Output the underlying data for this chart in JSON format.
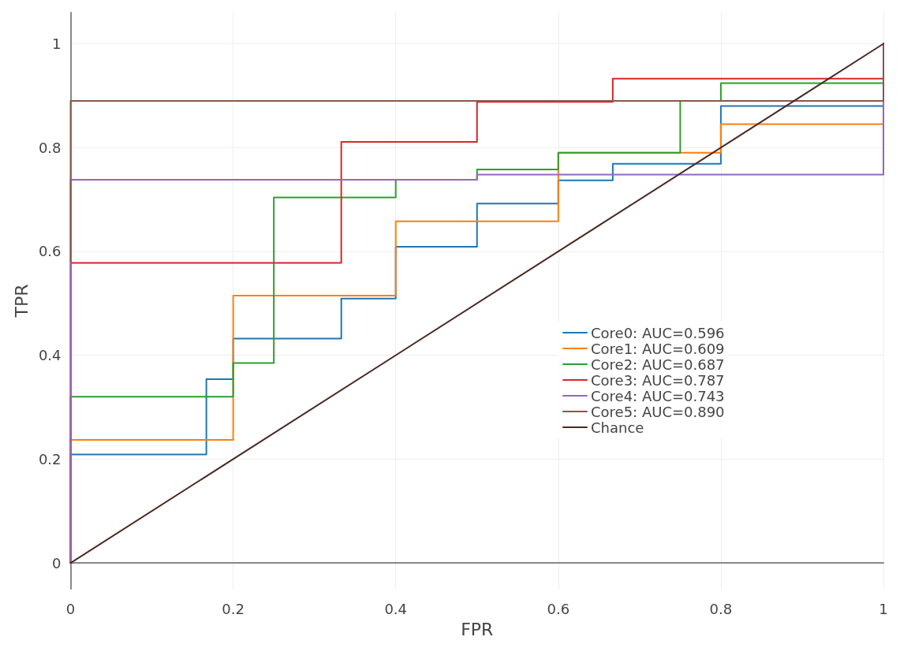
{
  "chart_data": {
    "type": "line",
    "xlabel": "FPR",
    "ylabel": "TPR",
    "xlim": [
      0,
      1
    ],
    "ylim": [
      -0.05,
      1.06
    ],
    "xticks": [
      0,
      0.2,
      0.4,
      0.6,
      0.8,
      1
    ],
    "yticks": [
      0,
      0.2,
      0.4,
      0.6,
      0.8,
      1
    ],
    "grid": true,
    "legend": "right",
    "marker": "none",
    "line_style": "solid",
    "series": [
      {
        "name": "Core0: AUC=0.596",
        "color": "#1f77b4",
        "x": [
          0,
          0,
          0.167,
          0.167,
          0.2,
          0.2,
          0.333,
          0.333,
          0.4,
          0.4,
          0.5,
          0.5,
          0.6,
          0.6,
          0.667,
          0.667,
          0.8,
          0.8,
          1,
          1
        ],
        "values": [
          0,
          0.209,
          0.209,
          0.354,
          0.354,
          0.432,
          0.432,
          0.509,
          0.509,
          0.609,
          0.609,
          0.692,
          0.692,
          0.737,
          0.737,
          0.769,
          0.769,
          0.88,
          0.88,
          1
        ]
      },
      {
        "name": "Core1: AUC=0.609",
        "color": "#ff7f0e",
        "x": [
          0,
          0,
          0.2,
          0.2,
          0.4,
          0.4,
          0.6,
          0.6,
          0.8,
          0.8,
          1,
          1
        ],
        "values": [
          0,
          0.237,
          0.237,
          0.515,
          0.515,
          0.658,
          0.658,
          0.79,
          0.79,
          0.845,
          0.845,
          1
        ]
      },
      {
        "name": "Core2: AUC=0.687",
        "color": "#2ca02c",
        "x": [
          0,
          0,
          0.2,
          0.2,
          0.25,
          0.25,
          0.4,
          0.4,
          0.5,
          0.5,
          0.6,
          0.6,
          0.75,
          0.75,
          0.8,
          0.8,
          1,
          1
        ],
        "values": [
          0,
          0.32,
          0.32,
          0.385,
          0.385,
          0.704,
          0.704,
          0.738,
          0.738,
          0.758,
          0.758,
          0.79,
          0.79,
          0.89,
          0.89,
          0.924,
          0.924,
          1
        ]
      },
      {
        "name": "Core3: AUC=0.787",
        "color": "#d62728",
        "x": [
          0,
          0,
          0.333,
          0.333,
          0.5,
          0.5,
          0.667,
          0.667,
          1,
          1
        ],
        "values": [
          0,
          0.578,
          0.578,
          0.811,
          0.811,
          0.888,
          0.888,
          0.933,
          0.933,
          1
        ]
      },
      {
        "name": "Core4: AUC=0.743",
        "color": "#9467bd",
        "x": [
          0,
          0,
          0.5,
          0.5,
          1,
          1
        ],
        "values": [
          0,
          0.738,
          0.738,
          0.748,
          0.748,
          1
        ]
      },
      {
        "name": "Core5: AUC=0.890",
        "color": "#8c564b",
        "x": [
          0,
          0,
          1,
          1
        ],
        "values": [
          0.58,
          0.89,
          0.89,
          1
        ]
      },
      {
        "name": "Chance",
        "color": "#4a2a22",
        "x": [
          0,
          1
        ],
        "values": [
          0,
          1
        ]
      }
    ]
  }
}
